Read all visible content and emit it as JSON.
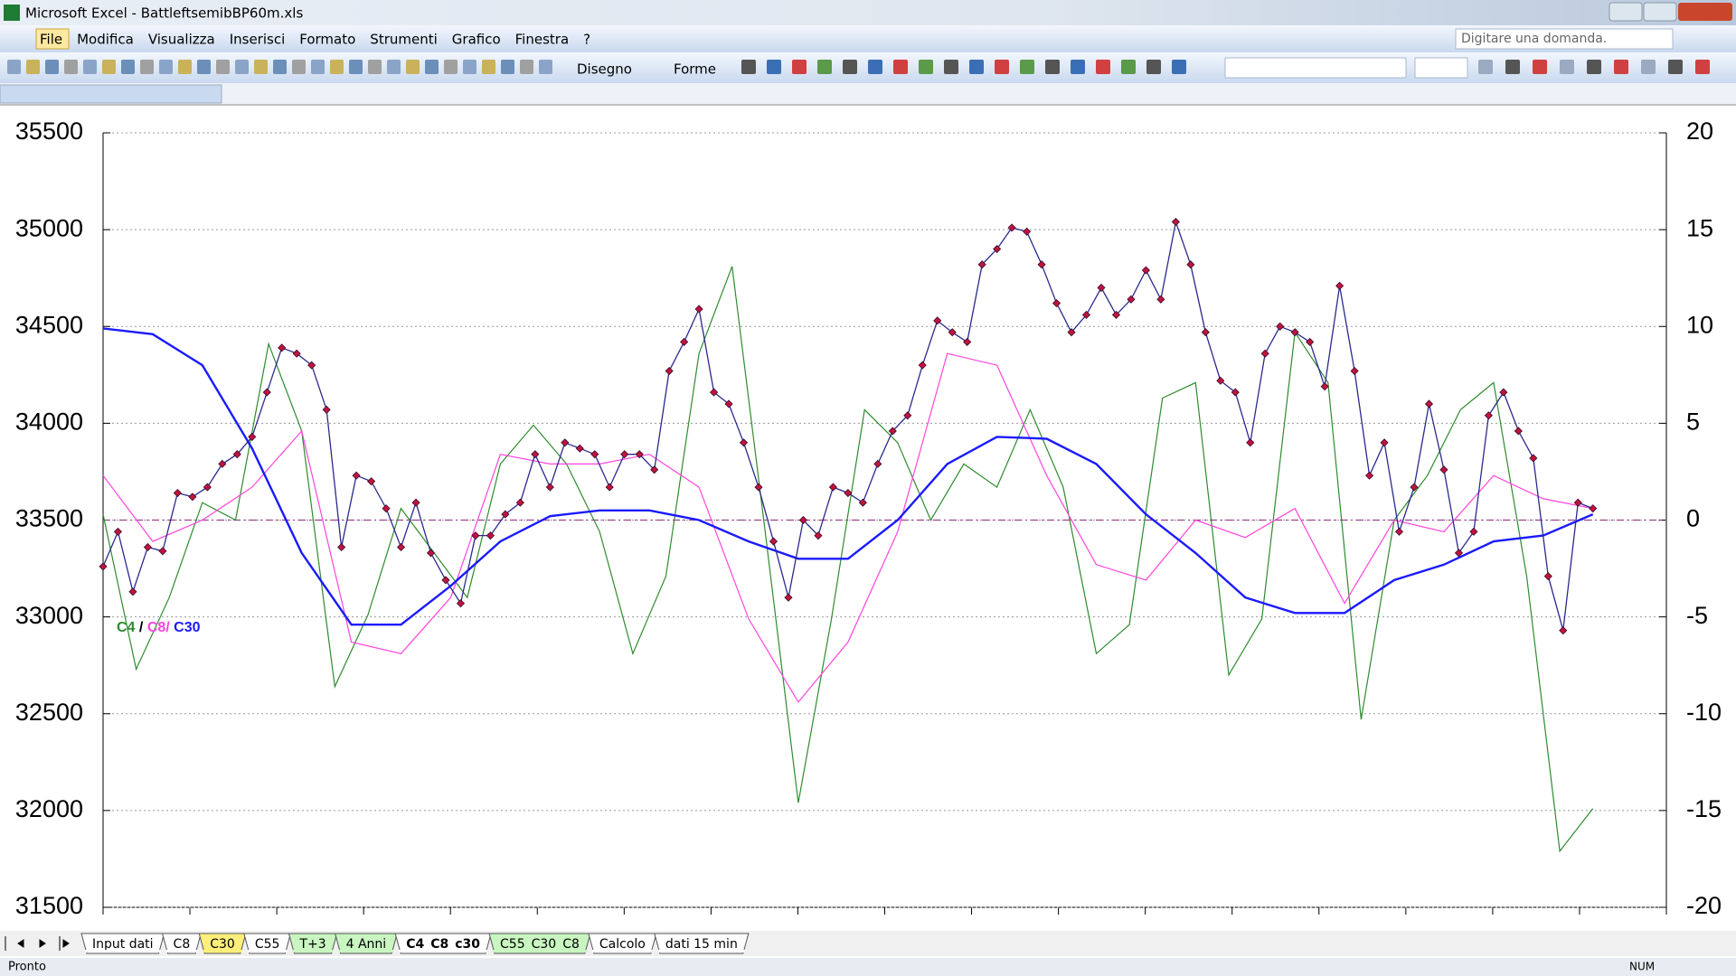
{
  "window": {
    "title": "Microsoft Excel - BattleftsemibBP60m.xls"
  },
  "menu": [
    "File",
    "Modifica",
    "Visualizza",
    "Inserisci",
    "Formato",
    "Strumenti",
    "Grafico",
    "Finestra",
    "?"
  ],
  "question_box": "Digitare una domanda.",
  "toolbar": {
    "draw": "Disegno",
    "shapes": "Forme"
  },
  "chart_data": {
    "type": "line",
    "ylim": [
      31500,
      35500
    ],
    "yticks": [
      31500,
      32000,
      32500,
      33000,
      33500,
      34000,
      34500,
      35000,
      35500
    ],
    "y2lim": [
      -20,
      20
    ],
    "y2ticks": [
      -20,
      -15,
      -10,
      -5,
      0,
      5,
      10,
      15,
      20
    ],
    "grid": true,
    "reference_line": {
      "value": 0,
      "axis": "y2",
      "color": "#a0408f"
    },
    "legend_separators": [
      "/",
      "/"
    ],
    "series": [
      {
        "color": "#2a2a8c",
        "marker_color": "#c0143c",
        "values": [
          33260,
          33440,
          33130,
          33360,
          33340,
          33640,
          33620,
          33670,
          33790,
          33840,
          33930,
          34160,
          34390,
          34360,
          34300,
          34070,
          33360,
          33730,
          33700,
          33560,
          33360,
          33590,
          33330,
          33190,
          33070,
          33420,
          33420,
          33530,
          33590,
          33840,
          33670,
          33900,
          33870,
          33840,
          33670,
          33840,
          33840,
          33760,
          34270,
          34420,
          34590,
          34160,
          34100,
          33900,
          33670,
          33390,
          33100,
          33500,
          33420,
          33670,
          33640,
          33590,
          33790,
          33960,
          34040,
          34300,
          34530,
          34470,
          34420,
          34820,
          34900,
          35010,
          34990,
          34820,
          34620,
          34470,
          34560,
          34700,
          34560,
          34640,
          34790,
          34640,
          35040,
          34820,
          34470,
          34220,
          34160,
          33900,
          34360,
          34500,
          34470,
          34420,
          34190,
          34710,
          34270,
          33730,
          33900,
          33440,
          33670,
          34100,
          33760,
          33330,
          33440,
          34040,
          34160,
          33960,
          33820,
          33210,
          32930,
          33590,
          33560
        ]
      },
      {
        "name": "C4",
        "color": "#2e8b2e",
        "axis": "y2",
        "values": [
          0.3,
          -7.7,
          -4,
          0.9,
          0,
          9.1,
          4.6,
          -8.6,
          -4.9,
          0.6,
          -1.7,
          -4,
          2.9,
          4.9,
          2.9,
          -0.6,
          -6.9,
          -2.9,
          8.6,
          13.1,
          -0.6,
          -14.6,
          -5.1,
          5.7,
          4,
          0,
          2.9,
          1.7,
          5.7,
          1.7,
          -6.9,
          -5.4,
          6.3,
          7.1,
          -8,
          -5.1,
          9.7,
          7.1,
          -10.3,
          0,
          2.3,
          5.7,
          7.1,
          -2.9,
          -17.1,
          -14.9
        ]
      },
      {
        "name": "C8",
        "color": "#ff44dd",
        "axis": "y2",
        "values": [
          2.3,
          -1.1,
          0,
          1.7,
          4.6,
          -6.3,
          -6.9,
          -4,
          3.4,
          2.9,
          2.9,
          3.4,
          1.7,
          -5.1,
          -9.4,
          -6.3,
          -0.6,
          8.6,
          8,
          2.3,
          -2.3,
          -3.1,
          0,
          -0.9,
          0.6,
          -4.3,
          0,
          -0.6,
          2.3,
          1.1,
          0.6
        ]
      },
      {
        "name": "C30",
        "color": "#1a1aff",
        "values": [
          34490,
          34460,
          34300,
          33870,
          33330,
          32960,
          32960,
          33160,
          33390,
          33520,
          33550,
          33550,
          33500,
          33390,
          33300,
          33300,
          33500,
          33790,
          33930,
          33920,
          33790,
          33530,
          33330,
          33100,
          33020,
          33020,
          33190,
          33270,
          33390,
          33420,
          33530
        ]
      }
    ]
  },
  "sheet_tabs": {
    "tabs": [
      {
        "label": "Input dati",
        "color": "#ffffff"
      },
      {
        "label": "C8",
        "color": "#ffffff"
      },
      {
        "label": "C30",
        "color": "#ffef7a"
      },
      {
        "label": "C55",
        "color": "#ffffff"
      },
      {
        "label": "T+3",
        "color": "#c8f5c0"
      },
      {
        "label": "4 Anni",
        "color": "#c8f5c0"
      },
      {
        "label": "C4_C8_c30",
        "color": "#ffffff"
      },
      {
        "label": "C55_C30_C8",
        "color": "#c8f5c0"
      },
      {
        "label": "Calcolo",
        "color": "#ffffff"
      },
      {
        "label": "dati 15 min",
        "color": "#ffffff"
      }
    ],
    "active": 6
  },
  "status": {
    "left": "Pronto",
    "right": "NUM"
  }
}
